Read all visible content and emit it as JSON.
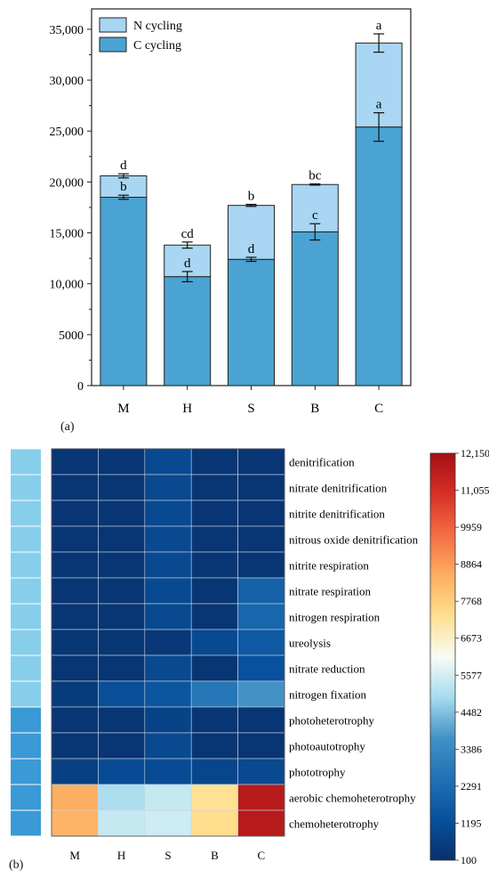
{
  "chart_data": [
    {
      "panel_label": "(a)",
      "type": "bar",
      "stacked": true,
      "categories": [
        "M",
        "H",
        "S",
        "B",
        "C"
      ],
      "series": [
        {
          "name": "C cycling",
          "color": "#4aa3d2",
          "values": [
            18500,
            10700,
            12400,
            15100,
            25400
          ],
          "error": [
            200,
            500,
            200,
            800,
            1400
          ],
          "letters": [
            "b",
            "d",
            "d",
            "c",
            "a"
          ]
        },
        {
          "name": "N cycling",
          "color": "#a8d6f3",
          "values": [
            2100,
            3100,
            5300,
            4650,
            8250
          ],
          "total_error": [
            200,
            300,
            100,
            60,
            900
          ],
          "letters": [
            "d",
            "cd",
            "b",
            "bc",
            "a"
          ]
        }
      ],
      "ylim": [
        0,
        37000
      ],
      "yticks": [
        0,
        5000,
        10000,
        15000,
        20000,
        25000,
        30000,
        35000
      ],
      "ytick_labels": [
        "0",
        "5000",
        "10,000",
        "15,000",
        "20,000",
        "25,000",
        "30,000",
        "35,000"
      ],
      "legend_position": "top-left",
      "xlabel": "",
      "ylabel": ""
    },
    {
      "panel_label": "(b)",
      "type": "heatmap",
      "columns": [
        "M",
        "H",
        "S",
        "B",
        "C"
      ],
      "rows": [
        "denitrification",
        "nitrate denitrification",
        "nitrite denitrification",
        "nitrous oxide denitrification",
        "nitrite respiration",
        "nitrate respiration",
        "nitrogen respiration",
        "ureolysis",
        "nitrate reduction",
        "nitrogen fixation",
        "photoheterotrophy",
        "photoautotrophy",
        "phototrophy",
        "aerobic chemoheterotrophy",
        "chemoheterotrophy"
      ],
      "values": [
        [
          300,
          300,
          1000,
          300,
          300
        ],
        [
          300,
          300,
          1000,
          300,
          300
        ],
        [
          300,
          300,
          1000,
          300,
          300
        ],
        [
          300,
          300,
          1000,
          300,
          300
        ],
        [
          300,
          300,
          1000,
          300,
          300
        ],
        [
          300,
          300,
          1000,
          300,
          1900
        ],
        [
          300,
          300,
          1000,
          300,
          2100
        ],
        [
          300,
          300,
          400,
          1000,
          1600
        ],
        [
          300,
          300,
          1000,
          300,
          1300
        ],
        [
          500,
          1200,
          1500,
          2700,
          3700
        ],
        [
          300,
          300,
          800,
          300,
          300
        ],
        [
          300,
          300,
          1000,
          300,
          300
        ],
        [
          700,
          1100,
          1100,
          900,
          1000
        ],
        [
          8500,
          5000,
          5400,
          7300,
          11700
        ],
        [
          8400,
          5400,
          5500,
          7400,
          11700
        ]
      ],
      "row_group_colors": [
        "#87ceeb",
        "#87ceeb",
        "#87ceeb",
        "#87ceeb",
        "#87ceeb",
        "#87ceeb",
        "#87ceeb",
        "#87ceeb",
        "#87ceeb",
        "#87ceeb",
        "#3a9ad6",
        "#3a9ad6",
        "#3a9ad6",
        "#3a9ad6",
        "#3a9ad6"
      ],
      "colorbar": {
        "min": 100,
        "max": 12150,
        "tick_values": [
          12150,
          11055,
          9959,
          8864,
          7768,
          6673,
          5577,
          4482,
          3386,
          2291,
          1195,
          100
        ],
        "tick_labels": [
          "12,150",
          "11,055",
          "9959",
          "8864",
          "7768",
          "6673",
          "5577",
          "4482",
          "3386",
          "2291",
          "1195",
          "100"
        ],
        "colors": [
          "#08306b",
          "#08519c",
          "#2171b5",
          "#4292c6",
          "#a6dbef",
          "#f7fcf5",
          "#fee090",
          "#fdae61",
          "#f46d43",
          "#d73027",
          "#a50f15"
        ]
      }
    }
  ]
}
